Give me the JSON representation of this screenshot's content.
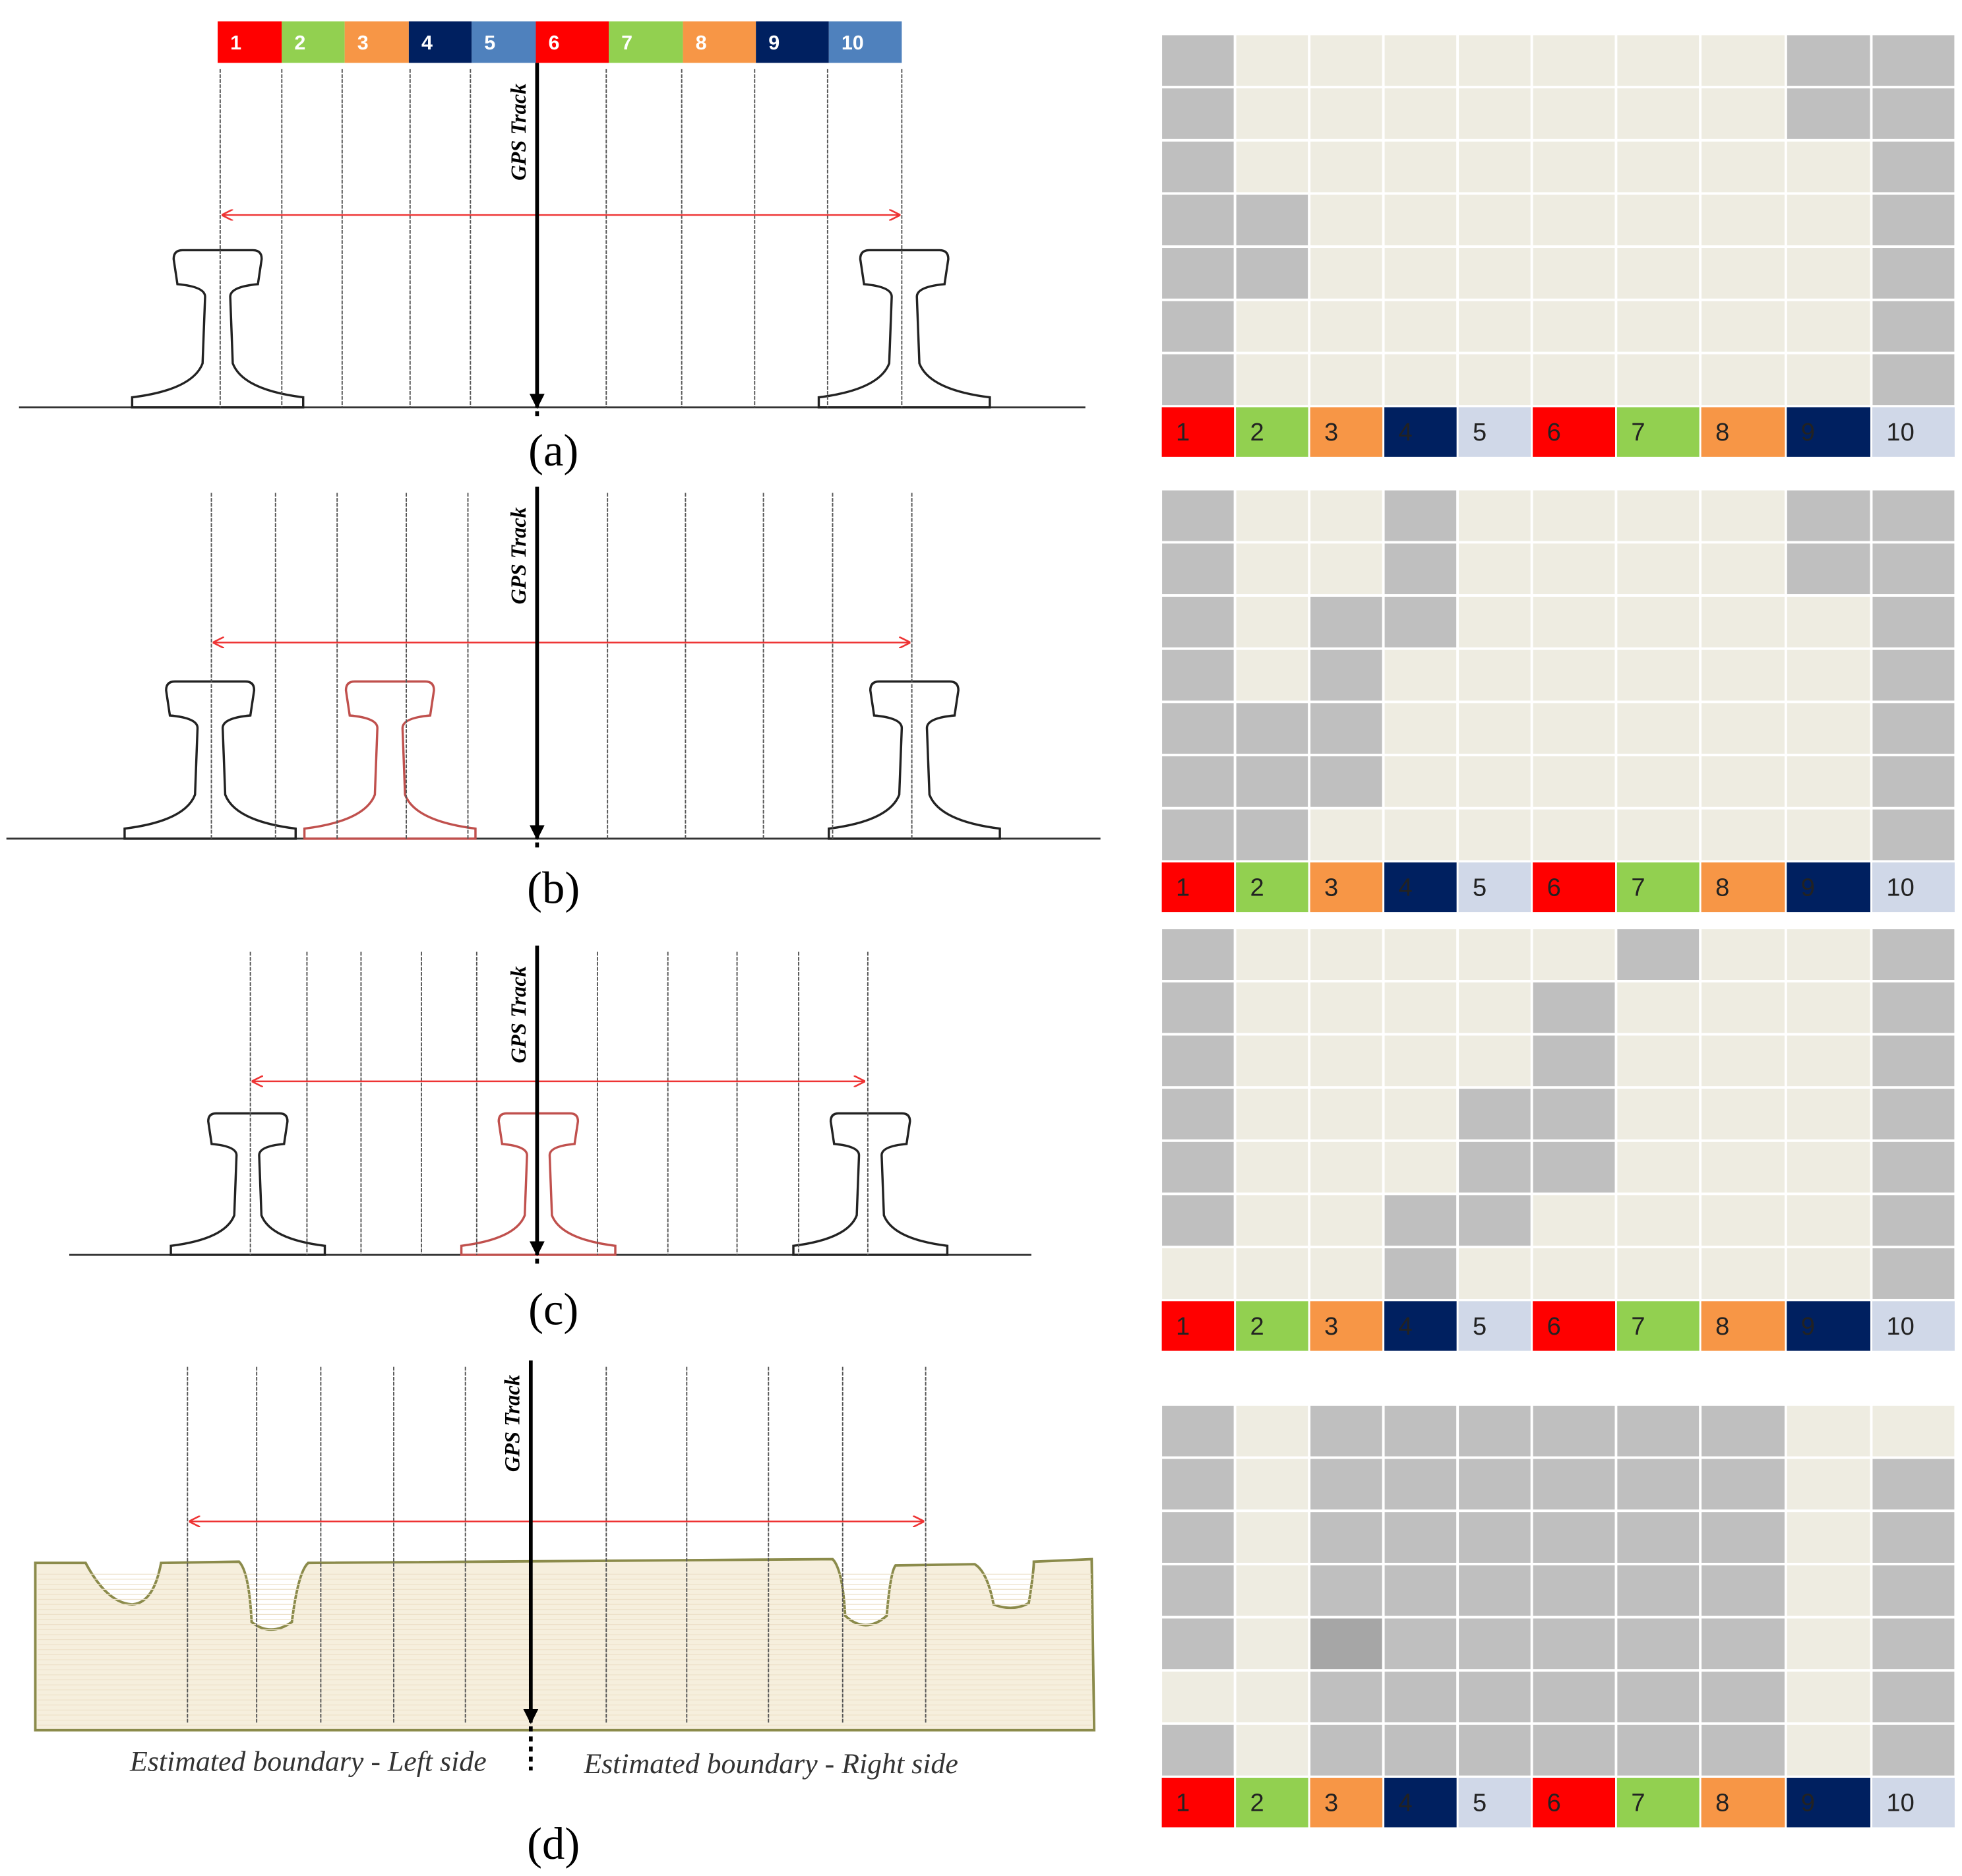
{
  "columns": [
    "1",
    "2",
    "3",
    "4",
    "5",
    "6",
    "7",
    "8",
    "9",
    "10"
  ],
  "panels": [
    {
      "label": "(a)",
      "track_label": "GPS Track"
    },
    {
      "label": "(b)",
      "track_label": "GPS Track"
    },
    {
      "label": "(c)",
      "track_label": "GPS Track"
    },
    {
      "label": "(d)",
      "track_label": "GPS Track"
    }
  ],
  "boundary_left": "Estimated boundary - Left side",
  "boundary_right": "Estimated boundary - Right side"
}
